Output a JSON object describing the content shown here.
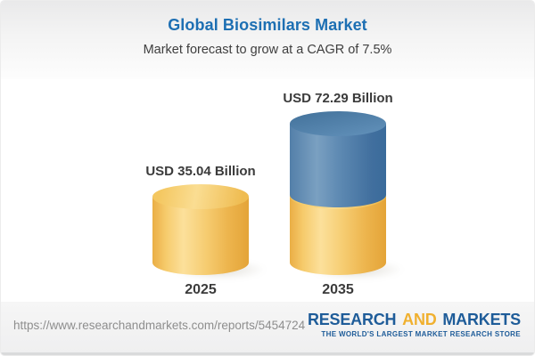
{
  "header": {
    "title": "Global Biosimilars Market",
    "subtitle": "Market forecast to grow at a CAGR of 7.5%"
  },
  "chart_data": {
    "type": "bar",
    "subtype": "3d-cylinder",
    "title": "Global Biosimilars Market",
    "annotation": "Market forecast to grow at a CAGR of 7.5%",
    "cagr_percent": 7.5,
    "unit": "USD Billion",
    "categories": [
      "2025",
      "2035"
    ],
    "values": [
      35.04,
      72.29
    ],
    "bars": [
      {
        "category": "2025",
        "value": 35.04,
        "value_label": "USD 35.04 Billion",
        "segments": [
          {
            "name": "base",
            "value": 35.04,
            "color_name": "gold",
            "hex": "#F3C45F"
          }
        ]
      },
      {
        "category": "2035",
        "value": 72.29,
        "value_label": "USD 72.29 Billion",
        "segments": [
          {
            "name": "base",
            "value": 35.04,
            "color_name": "gold",
            "hex": "#F3C45F"
          },
          {
            "name": "growth",
            "value": 37.25,
            "color_name": "blue",
            "hex": "#4F80AD"
          }
        ]
      }
    ],
    "legend": null,
    "grid": false,
    "axis_labels_shown": false
  },
  "footer": {
    "url": "https://www.researchandmarkets.com/reports/5454724",
    "logo": {
      "word1": "RESEARCH",
      "word2": "AND",
      "word3": "MARKETS",
      "tagline": "THE WORLD'S LARGEST MARKET RESEARCH STORE"
    }
  },
  "colors": {
    "title_accent": "#1D6FB3",
    "subtitle_text": "#3E3E3E",
    "label_text": "#3B3B3B",
    "bar_gold": "#F3C45F",
    "bar_blue": "#4F80AD",
    "footer_bg": "#EFEFF0",
    "footer_url_text": "#8E8E8E",
    "logo_blue": "#1E5C99",
    "logo_gold": "#F0B02F"
  }
}
